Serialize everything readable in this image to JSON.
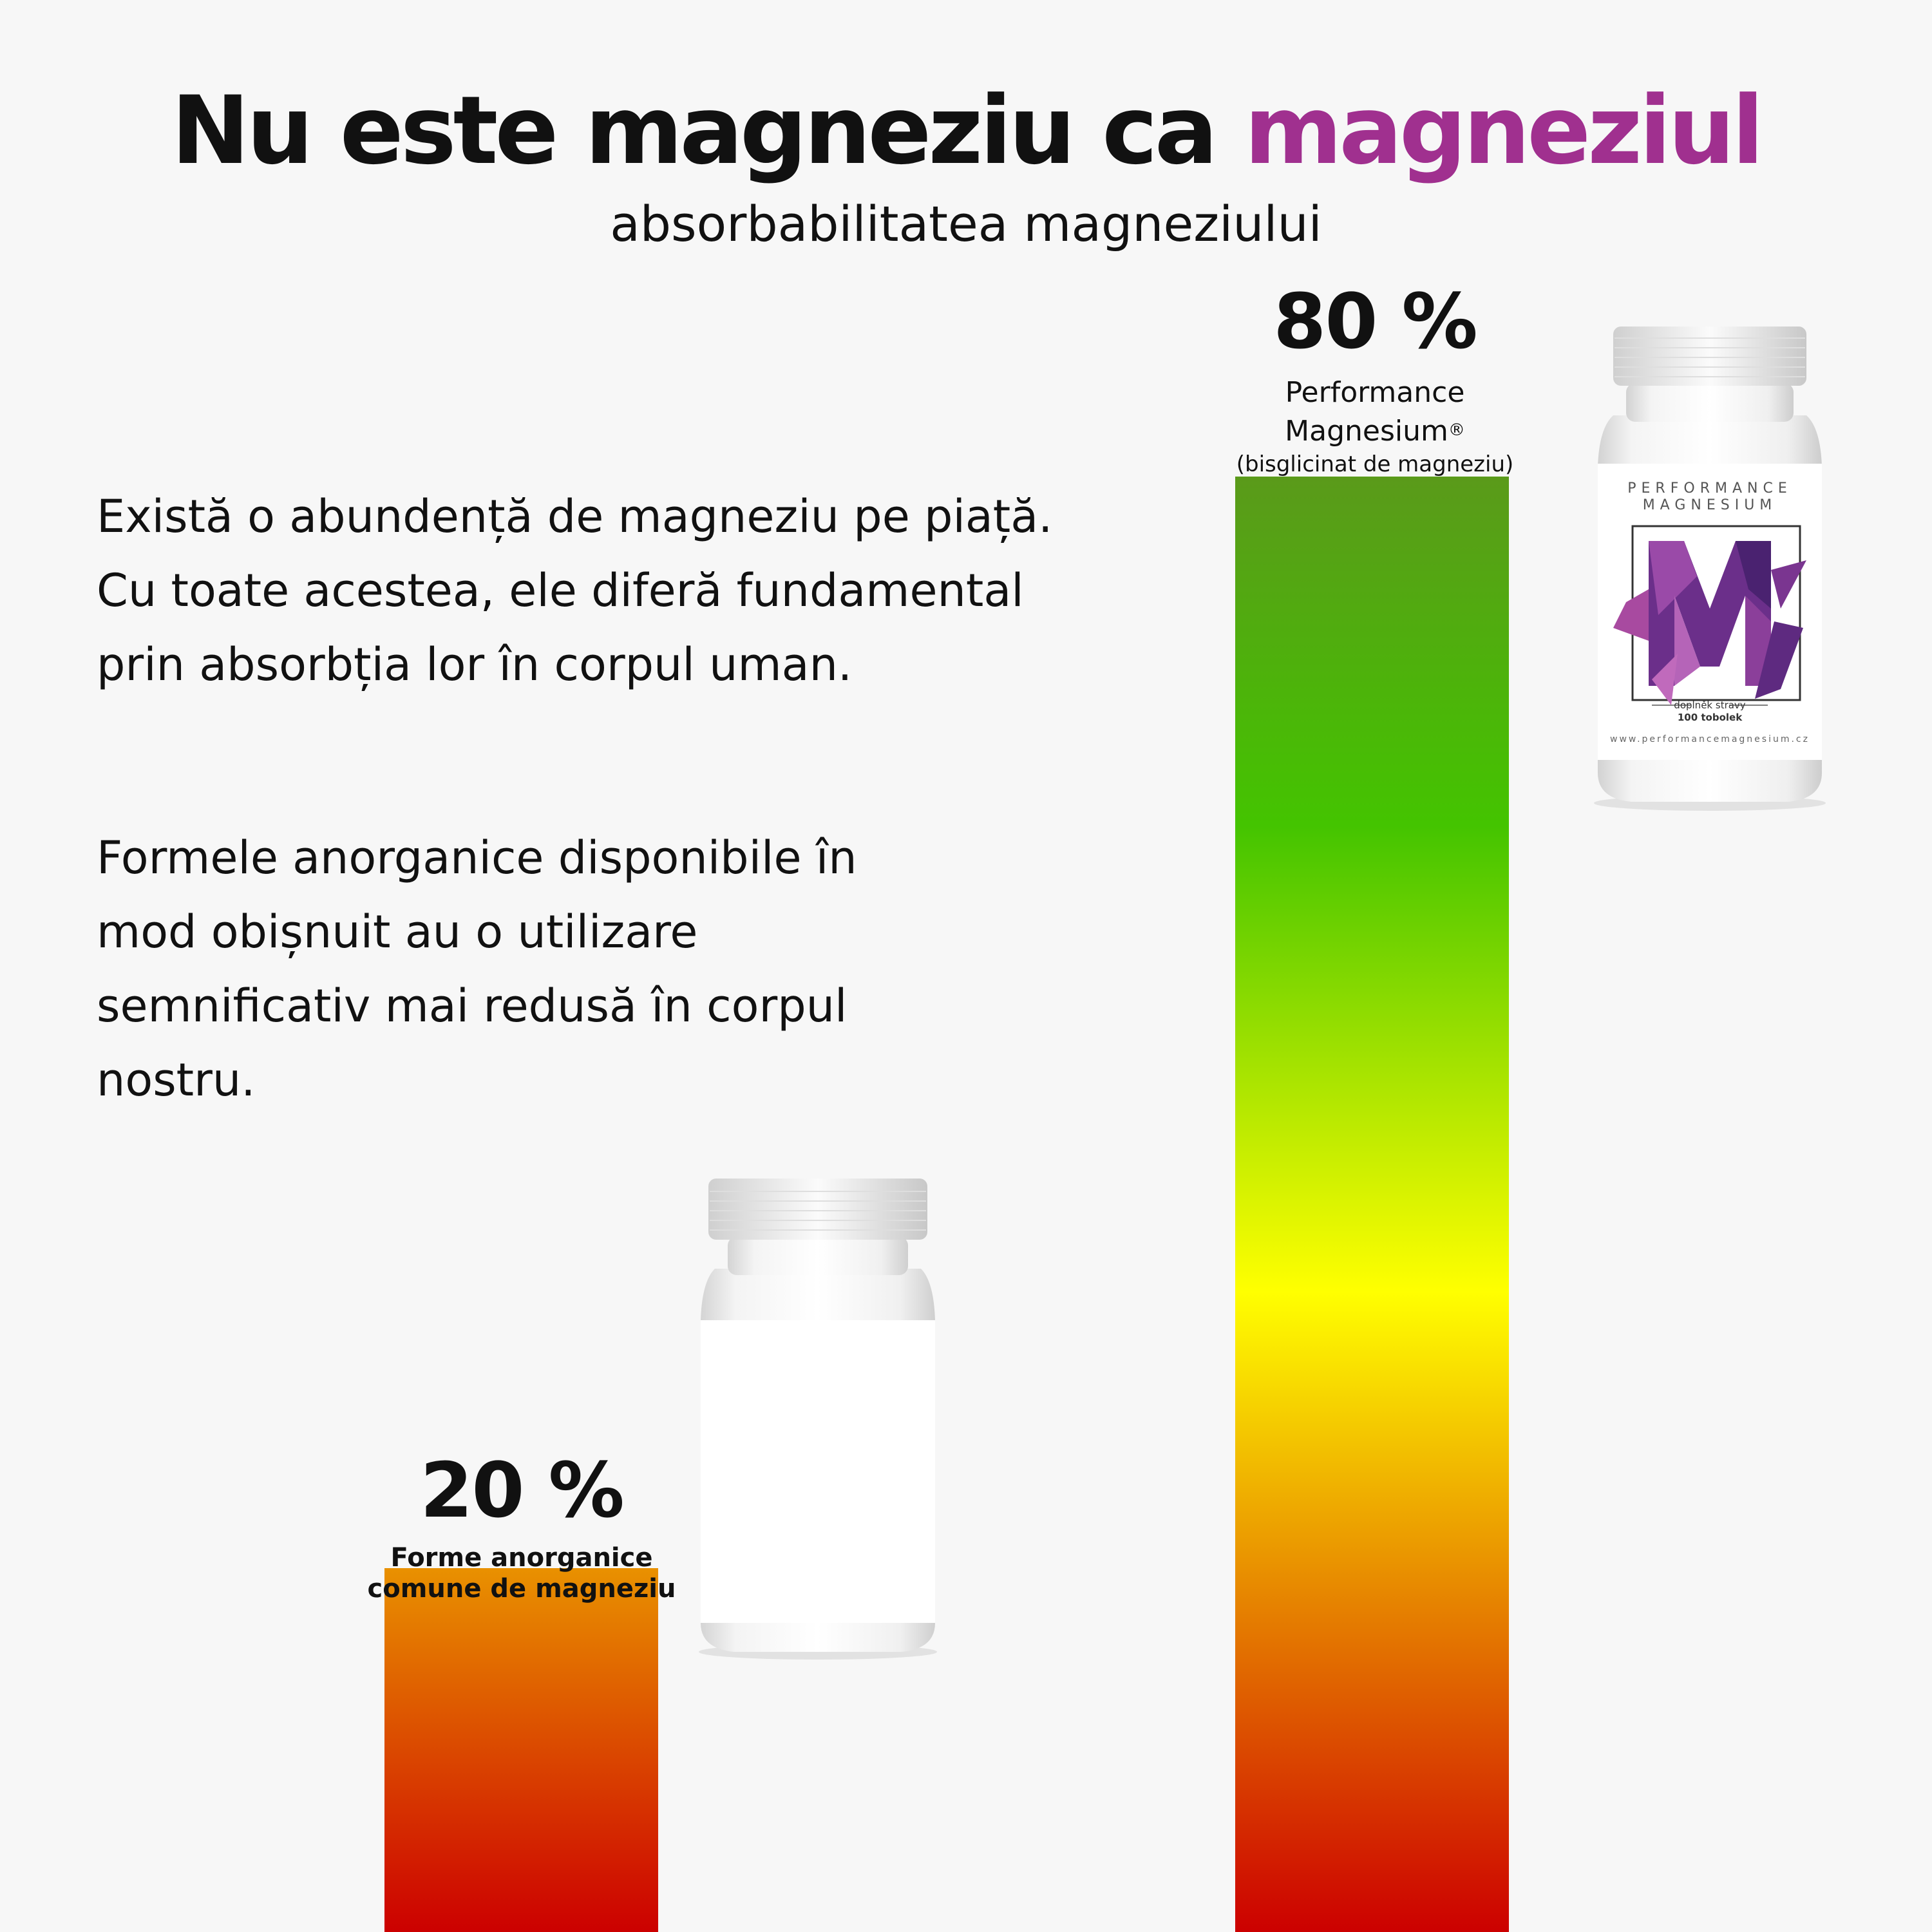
{
  "header": {
    "title_main": "Nu este magneziu ca ",
    "title_accent": "magneziul",
    "subtitle": "absorbabilitatea magneziului"
  },
  "body": {
    "para1": [
      "Există o abundență de magneziu pe piață.",
      "Cu toate acestea, ele diferă fundamental",
      "prin absorbția lor în corpul uman."
    ],
    "para2": [
      "Formele anorganice disponibile în",
      "mod obișnuit au o utilizare",
      "semnificativ mai redusă în corpul",
      "nostru."
    ]
  },
  "chart_data": {
    "type": "bar",
    "title": "Nu este magneziu ca magneziul",
    "subtitle": "absorbabilitatea magneziului",
    "categories": [
      "Forme anorganice comune de magneziu",
      "Performance Magnesium® (bisglicinat de magneziu)"
    ],
    "values": [
      20,
      80
    ],
    "value_labels": [
      "20 %",
      "80 %"
    ],
    "unit": "%",
    "ylim": [
      0,
      100
    ],
    "bars": [
      {
        "value": 20,
        "value_label": "20 %",
        "name_line1": "Forme anorganice",
        "name_line2": "comune de magneziu",
        "note": ""
      },
      {
        "value": 80,
        "value_label": "80 %",
        "name_line1": "Performance",
        "name_line2": "Magnesium",
        "name_mark": "®",
        "note": "(bisglicinat de magneziu)"
      }
    ],
    "colormap": [
      "#cc0000",
      "#ffff00",
      "#44c400",
      "#5a9a1a"
    ],
    "grid": false,
    "legend": "none"
  },
  "product": {
    "brand_line1": "PERFORMANCE",
    "brand_line2": "MAGNESIUM",
    "supplement": "doplněk stravy",
    "count": "100 tobolek",
    "url": "www.performancemagnesium.cz"
  },
  "colors": {
    "accent": "#a0308f",
    "text": "#111111",
    "background": "#f7f7f7"
  }
}
